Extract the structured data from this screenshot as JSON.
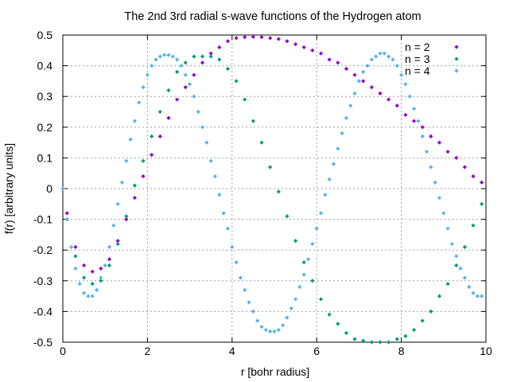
{
  "chart_data": {
    "type": "scatter",
    "title": "The 2nd  3rd radial s-wave functions of the Hydrogen atom",
    "xlabel": "r [bohr radius]",
    "ylabel": "f(r) [arbitrary units]",
    "xlim": [
      0,
      10
    ],
    "ylim": [
      -0.5,
      0.5
    ],
    "xticks": [
      0,
      2,
      4,
      6,
      8,
      10
    ],
    "xtick_labels": [
      "0",
      "2",
      "4",
      "6",
      "8",
      "10"
    ],
    "yticks": [
      -0.5,
      -0.4,
      -0.3,
      -0.2,
      -0.1,
      0,
      0.1,
      0.2,
      0.3,
      0.4,
      0.5
    ],
    "ytick_labels": [
      "-0.5",
      "-0.4",
      "-0.3",
      "-0.2",
      "-0.1",
      "0",
      "0.1",
      "0.2",
      "0.3",
      "0.4",
      "0.5"
    ],
    "grid": true,
    "legend_position": "top-right",
    "series": [
      {
        "name": "n = 2",
        "color": "#9400d3",
        "x": [
          0.1,
          0.3,
          0.5,
          0.7,
          0.9,
          1.1,
          1.3,
          1.5,
          1.7,
          1.9,
          2.1,
          2.3,
          2.5,
          2.7,
          2.9,
          3.1,
          3.3,
          3.5,
          3.7,
          3.9,
          4.1,
          4.3,
          4.5,
          4.7,
          4.9,
          5.1,
          5.3,
          5.5,
          5.7,
          5.9,
          6.1,
          6.3,
          6.5,
          6.7,
          6.9,
          7.1,
          7.3,
          7.5,
          7.7,
          7.9,
          8.1,
          8.3,
          8.5,
          8.7,
          8.9,
          9.1,
          9.3,
          9.5,
          9.7,
          9.9
        ],
        "y": [
          -0.08,
          -0.19,
          -0.25,
          -0.27,
          -0.26,
          -0.23,
          -0.17,
          -0.1,
          -0.03,
          0.04,
          0.11,
          0.17,
          0.23,
          0.29,
          0.33,
          0.37,
          0.41,
          0.44,
          0.46,
          0.48,
          0.49,
          0.493,
          0.494,
          0.493,
          0.49,
          0.487,
          0.48,
          0.47,
          0.46,
          0.45,
          0.44,
          0.42,
          0.41,
          0.39,
          0.37,
          0.35,
          0.33,
          0.31,
          0.29,
          0.27,
          0.24,
          0.22,
          0.2,
          0.17,
          0.15,
          0.12,
          0.1,
          0.07,
          0.04,
          0.02
        ]
      },
      {
        "name": "n = 3",
        "color": "#009e73",
        "x": [
          0.1,
          0.3,
          0.5,
          0.7,
          0.9,
          1.1,
          1.3,
          1.5,
          1.7,
          1.9,
          2.1,
          2.3,
          2.5,
          2.7,
          2.9,
          3.1,
          3.3,
          3.5,
          3.7,
          3.9,
          4.1,
          4.3,
          4.5,
          4.7,
          4.9,
          5.1,
          5.3,
          5.5,
          5.7,
          5.9,
          6.1,
          6.3,
          6.5,
          6.7,
          6.9,
          7.1,
          7.3,
          7.5,
          7.7,
          7.9,
          8.1,
          8.3,
          8.5,
          8.7,
          8.9,
          9.1,
          9.3,
          9.5,
          9.7,
          9.9
        ],
        "y": [
          -0.1,
          -0.22,
          -0.29,
          -0.31,
          -0.3,
          -0.25,
          -0.18,
          -0.09,
          0.01,
          0.09,
          0.17,
          0.25,
          0.32,
          0.38,
          0.41,
          0.43,
          0.43,
          0.43,
          0.42,
          0.39,
          0.35,
          0.29,
          0.22,
          0.15,
          0.07,
          -0.01,
          -0.09,
          -0.17,
          -0.24,
          -0.3,
          -0.36,
          -0.41,
          -0.44,
          -0.47,
          -0.49,
          -0.495,
          -0.5,
          -0.5,
          -0.5,
          -0.49,
          -0.48,
          -0.46,
          -0.43,
          -0.4,
          -0.35,
          -0.31,
          -0.25,
          -0.19,
          -0.12,
          -0.05
        ]
      },
      {
        "name": "n = 4",
        "color": "#56b4e9",
        "x": [
          0.0,
          0.1,
          0.2,
          0.3,
          0.4,
          0.5,
          0.6,
          0.7,
          0.8,
          0.9,
          1.0,
          1.1,
          1.2,
          1.3,
          1.4,
          1.5,
          1.6,
          1.7,
          1.8,
          1.9,
          2.0,
          2.1,
          2.2,
          2.3,
          2.4,
          2.5,
          2.6,
          2.7,
          2.8,
          2.9,
          3.0,
          3.1,
          3.2,
          3.3,
          3.4,
          3.5,
          3.6,
          3.7,
          3.8,
          3.9,
          4.0,
          4.1,
          4.2,
          4.3,
          4.4,
          4.5,
          4.6,
          4.7,
          4.8,
          4.9,
          5.0,
          5.1,
          5.2,
          5.3,
          5.4,
          5.5,
          5.6,
          5.7,
          5.8,
          5.9,
          6.0,
          6.1,
          6.2,
          6.3,
          6.4,
          6.5,
          6.6,
          6.7,
          6.8,
          6.9,
          7.0,
          7.1,
          7.2,
          7.3,
          7.4,
          7.5,
          7.6,
          7.7,
          7.8,
          7.9,
          8.0,
          8.1,
          8.2,
          8.3,
          8.4,
          8.5,
          8.6,
          8.7,
          8.8,
          8.9,
          9.0,
          9.1,
          9.2,
          9.3,
          9.4,
          9.5,
          9.6,
          9.7,
          9.8,
          9.9
        ],
        "y": [
          0.0,
          -0.1,
          -0.19,
          -0.26,
          -0.31,
          -0.34,
          -0.35,
          -0.35,
          -0.33,
          -0.29,
          -0.25,
          -0.19,
          -0.12,
          -0.05,
          0.02,
          0.09,
          0.16,
          0.22,
          0.28,
          0.33,
          0.37,
          0.4,
          0.42,
          0.43,
          0.435,
          0.435,
          0.43,
          0.42,
          0.4,
          0.37,
          0.34,
          0.3,
          0.25,
          0.2,
          0.15,
          0.09,
          0.04,
          -0.02,
          -0.08,
          -0.13,
          -0.19,
          -0.24,
          -0.29,
          -0.33,
          -0.37,
          -0.4,
          -0.43,
          -0.45,
          -0.46,
          -0.465,
          -0.465,
          -0.46,
          -0.445,
          -0.42,
          -0.39,
          -0.36,
          -0.32,
          -0.28,
          -0.23,
          -0.18,
          -0.13,
          -0.08,
          -0.02,
          0.03,
          0.08,
          0.13,
          0.18,
          0.23,
          0.27,
          0.31,
          0.35,
          0.38,
          0.4,
          0.42,
          0.43,
          0.44,
          0.44,
          0.43,
          0.42,
          0.4,
          0.37,
          0.34,
          0.3,
          0.26,
          0.22,
          0.17,
          0.12,
          0.07,
          0.02,
          -0.03,
          -0.08,
          -0.13,
          -0.18,
          -0.22,
          -0.26,
          -0.29,
          -0.32,
          -0.34,
          -0.35,
          -0.35
        ]
      }
    ]
  }
}
